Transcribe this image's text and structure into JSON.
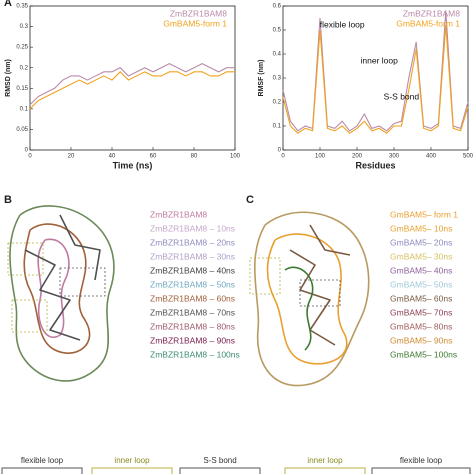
{
  "chart_data": [
    {
      "type": "line",
      "xlabel": "Time (ns)",
      "ylabel": "RMSD (nm)",
      "x": [
        0,
        4,
        8,
        12,
        16,
        20,
        24,
        28,
        32,
        36,
        40,
        44,
        48,
        52,
        56,
        60,
        64,
        68,
        72,
        76,
        80,
        84,
        88,
        92,
        96,
        100
      ],
      "series": [
        {
          "name": "ZmBZR1BAM8",
          "color": "#b98aa8",
          "values": [
            0.11,
            0.13,
            0.14,
            0.15,
            0.17,
            0.18,
            0.18,
            0.17,
            0.18,
            0.19,
            0.19,
            0.2,
            0.18,
            0.19,
            0.2,
            0.19,
            0.2,
            0.21,
            0.2,
            0.19,
            0.2,
            0.21,
            0.2,
            0.19,
            0.2,
            0.2
          ]
        },
        {
          "name": "GmBAM5-form 1",
          "color": "#f2a21e",
          "values": [
            0.1,
            0.12,
            0.13,
            0.14,
            0.15,
            0.16,
            0.17,
            0.16,
            0.17,
            0.18,
            0.17,
            0.19,
            0.17,
            0.18,
            0.19,
            0.18,
            0.18,
            0.19,
            0.19,
            0.18,
            0.19,
            0.19,
            0.18,
            0.18,
            0.19,
            0.19
          ]
        }
      ],
      "xlim": [
        0,
        100
      ],
      "xticks": [
        0,
        20,
        40,
        60,
        80,
        100
      ],
      "ylim": [
        0,
        0.35
      ],
      "yticks": [
        0,
        0.05,
        0.1,
        0.15,
        0.2,
        0.25,
        0.3,
        0.35
      ]
    },
    {
      "type": "line",
      "xlabel": "Residues",
      "ylabel": "RMSF (nm)",
      "x": [
        0,
        20,
        40,
        60,
        80,
        100,
        120,
        140,
        160,
        180,
        200,
        220,
        240,
        260,
        280,
        300,
        320,
        340,
        360,
        380,
        400,
        420,
        440,
        460,
        480,
        500
      ],
      "series": [
        {
          "name": "ZmBZR1BAM8",
          "color": "#b98aa8",
          "values": [
            0.25,
            0.12,
            0.08,
            0.1,
            0.09,
            0.55,
            0.1,
            0.09,
            0.12,
            0.08,
            0.1,
            0.15,
            0.09,
            0.1,
            0.08,
            0.11,
            0.12,
            0.3,
            0.45,
            0.1,
            0.09,
            0.11,
            0.58,
            0.1,
            0.09,
            0.2
          ]
        },
        {
          "name": "GmBAM5-form 1",
          "color": "#f2a21e",
          "values": [
            0.22,
            0.1,
            0.07,
            0.09,
            0.08,
            0.5,
            0.09,
            0.08,
            0.1,
            0.07,
            0.09,
            0.12,
            0.08,
            0.09,
            0.07,
            0.1,
            0.1,
            0.25,
            0.42,
            0.09,
            0.08,
            0.1,
            0.52,
            0.09,
            0.08,
            0.18
          ]
        }
      ],
      "annotations": [
        "flexible loop",
        "inner loop",
        "S-S bond"
      ],
      "xlim": [
        0,
        500
      ],
      "xticks": [
        0,
        100,
        200,
        300,
        400,
        500
      ],
      "ylim": [
        0,
        0.6
      ],
      "yticks": [
        0,
        0.1,
        0.2,
        0.3,
        0.4,
        0.5,
        0.6
      ]
    }
  ],
  "panel_labels": [
    "A",
    "B",
    "C"
  ],
  "panel_b_legend": [
    {
      "text": "ZmBZR1BAM8",
      "color": "#c07aa0"
    },
    {
      "text": "ZmBZR1BAM8 – 10ns",
      "color": "#c4a8c8"
    },
    {
      "text": "ZmBZR1BAM8 – 20ns",
      "color": "#8c8cc0"
    },
    {
      "text": "ZmBZR1BAM8 – 30ns",
      "color": "#b0a0c8"
    },
    {
      "text": "ZmBZR1BAM8 – 40ns",
      "color": "#404040"
    },
    {
      "text": "ZmBZR1BAM8 – 50ns",
      "color": "#70a8c0"
    },
    {
      "text": "ZmBZR1BAM8 – 60ns",
      "color": "#a0603a"
    },
    {
      "text": "ZmBZR1BAM8 – 70ns",
      "color": "#505050"
    },
    {
      "text": "ZmBZR1BAM8 – 80ns",
      "color": "#9c5a6a"
    },
    {
      "text": "ZmBZR1BAM8 – 90ns",
      "color": "#7a2050"
    },
    {
      "text": "ZmBZR1BAM8 – 100ns",
      "color": "#3c8c70"
    }
  ],
  "panel_c_legend": [
    {
      "text": "GmBAM5– form 1",
      "color": "#e8a030"
    },
    {
      "text": "GmBAM5– 10ns",
      "color": "#e8a030"
    },
    {
      "text": "GmBAM5– 20ns",
      "color": "#8a8ac0"
    },
    {
      "text": "GmBAM5– 30ns",
      "color": "#d8c060"
    },
    {
      "text": "GmBAM5– 40ns",
      "color": "#9060a0"
    },
    {
      "text": "GmBAM5– 50ns",
      "color": "#a0c8d8"
    },
    {
      "text": "GmBAM5– 60ns",
      "color": "#7a5a40"
    },
    {
      "text": "GmBAM5– 70ns",
      "color": "#8c4050"
    },
    {
      "text": "GmBAM5– 80ns",
      "color": "#a05a5a"
    },
    {
      "text": "GmBAM5– 90ns",
      "color": "#d08a30"
    },
    {
      "text": "GmBAM5– 100ns",
      "color": "#3c7a30"
    }
  ],
  "insets": [
    "flexible loop",
    "inner loop",
    "S-S bond",
    "inner loop",
    "flexible loop"
  ]
}
